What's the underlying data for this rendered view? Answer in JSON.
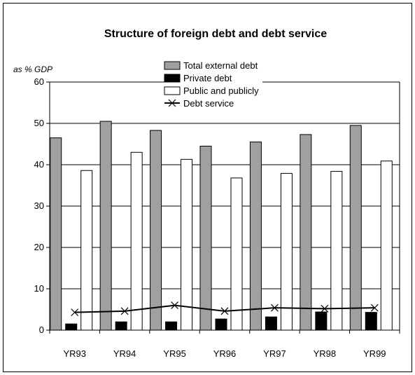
{
  "chart_data": {
    "type": "bar",
    "title": "Structure of foreign debt and debt service",
    "ylabel": "as % GDP",
    "xlabel": "",
    "categories": [
      "YR93",
      "YR94",
      "YR95",
      "YR96",
      "YR97",
      "YR98",
      "YR99"
    ],
    "ylim": [
      0,
      60
    ],
    "yticks": [
      0,
      10,
      20,
      30,
      40,
      50,
      60
    ],
    "grid": true,
    "legend_position": "top-center",
    "series": [
      {
        "name": "Total external debt",
        "kind": "bar",
        "color": "#a0a0a0",
        "values": [
          46.5,
          50.5,
          48.3,
          44.5,
          45.5,
          47.3,
          49.5
        ]
      },
      {
        "name": "Private debt",
        "kind": "bar",
        "color": "#000000",
        "values": [
          1.5,
          2.0,
          2.0,
          2.7,
          3.2,
          4.4,
          4.3
        ]
      },
      {
        "name": "Public and publicly",
        "kind": "bar",
        "color": "#ffffff",
        "values": [
          38.6,
          43.0,
          41.3,
          36.8,
          37.9,
          38.4,
          40.9
        ]
      },
      {
        "name": "Debt service",
        "kind": "line",
        "color": "#000000",
        "values": [
          4.3,
          4.6,
          6.0,
          4.6,
          5.4,
          5.2,
          5.4
        ]
      }
    ]
  }
}
